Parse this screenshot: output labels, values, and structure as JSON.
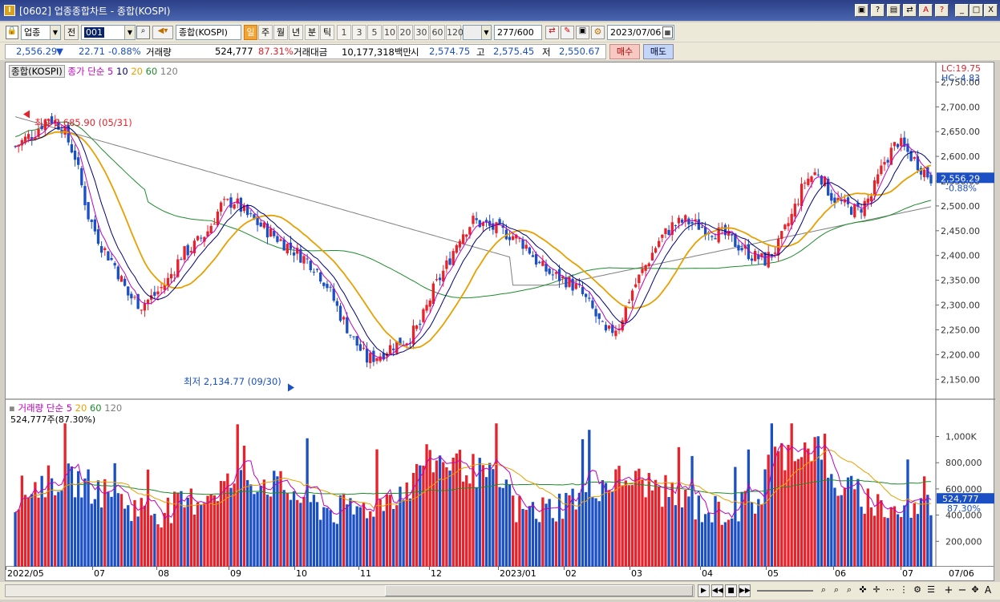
{
  "window": {
    "title": "[0602] 업종종합차트 - 종합(KOSPI)",
    "icon": "I"
  },
  "title_buttons": [
    "▣",
    "?",
    "▤",
    "⇄",
    "A",
    "?",
    "_",
    "□",
    "X"
  ],
  "toolbar": {
    "market": "업종",
    "market_check": "전",
    "code": "001",
    "name": "종합(KOSPI)",
    "periods": [
      "일",
      "주",
      "월",
      "년",
      "분",
      "틱"
    ],
    "selected_period": "일",
    "intervals": [
      "1",
      "3",
      "5",
      "10",
      "20",
      "30",
      "60",
      "120"
    ],
    "count": "277",
    "count_total": "/600",
    "date": "2023/07/06"
  },
  "quote": {
    "price": "2,556.29",
    "change": "22.71",
    "change_rate": "-0.88%",
    "volume_label": "거래량",
    "volume": "524,777",
    "volume_rate": "87.31%",
    "amount_label": "거래대금",
    "amount": "10,177,318백만",
    "open_label": "시",
    "open": "2,574.75",
    "high_label": "고",
    "high": "2,575.45",
    "low_label": "저",
    "low": "2,550.67",
    "buy_button": "매수",
    "sell_button": "매도"
  },
  "colors": {
    "up": "#e8212a",
    "down": "#1b4fc4",
    "ma5": "#c000c0",
    "ma10": "#00007a",
    "ma20": "#e8a000",
    "ma60": "#1d8c2c",
    "ma120": "#7f7f7f"
  },
  "price_panel": {
    "legend": {
      "name": "종합(KOSPI)",
      "label": "종가 단순",
      "p5": "5",
      "p10": "10",
      "p20": "20",
      "p60": "60",
      "p120": "120"
    },
    "lc": "LC:19.75",
    "hc": "HC:-4.83",
    "high_note": "최고 2,685.90 (05/31)",
    "low_note": "최저 2,134.77 (09/30)",
    "last_price": "2,556.29",
    "last_rate": "-0.88%",
    "ticks": [
      "2,750.00",
      "2,700.00",
      "2,650.00",
      "2,600.00",
      "2,550.00",
      "2,500.00",
      "2,450.00",
      "2,400.00",
      "2,350.00",
      "2,300.00",
      "2,250.00",
      "2,200.00",
      "2,150.00"
    ]
  },
  "volume_panel": {
    "legend": {
      "name": "거래량",
      "label": "단순",
      "p5": "5",
      "p20": "20",
      "p60": "60",
      "p120": "120"
    },
    "value_note": "524,777주(87.30%)",
    "last_volume": "524,777",
    "last_rate": "87.30%",
    "ticks": [
      "1,000K",
      "800,000",
      "600,000",
      "400,000",
      "200,000"
    ]
  },
  "x_labels": [
    "2022/05",
    "07",
    "08",
    "09",
    "10",
    "11",
    "12",
    "2023/01",
    "02",
    "03",
    "04",
    "05",
    "06",
    "07",
    "07/06"
  ],
  "chart_data": {
    "type": "candlestick",
    "period": "daily",
    "from": "2022/05",
    "to": "2023/07/06",
    "series": [
      {
        "name": "종합(KOSPI)",
        "ylim": [
          2110,
          2770
        ]
      }
    ],
    "keypoints": [
      {
        "date": "05/31",
        "close": 2685.9,
        "note": "최고"
      },
      {
        "date": "09/30",
        "close": 2134.77,
        "note": "최저"
      },
      {
        "date": "2023/07/06",
        "open": 2574.75,
        "high": 2575.45,
        "low": 2550.67,
        "close": 2556.29,
        "volume": 524777
      }
    ],
    "volume_ylim": [
      0,
      1150000
    ]
  }
}
